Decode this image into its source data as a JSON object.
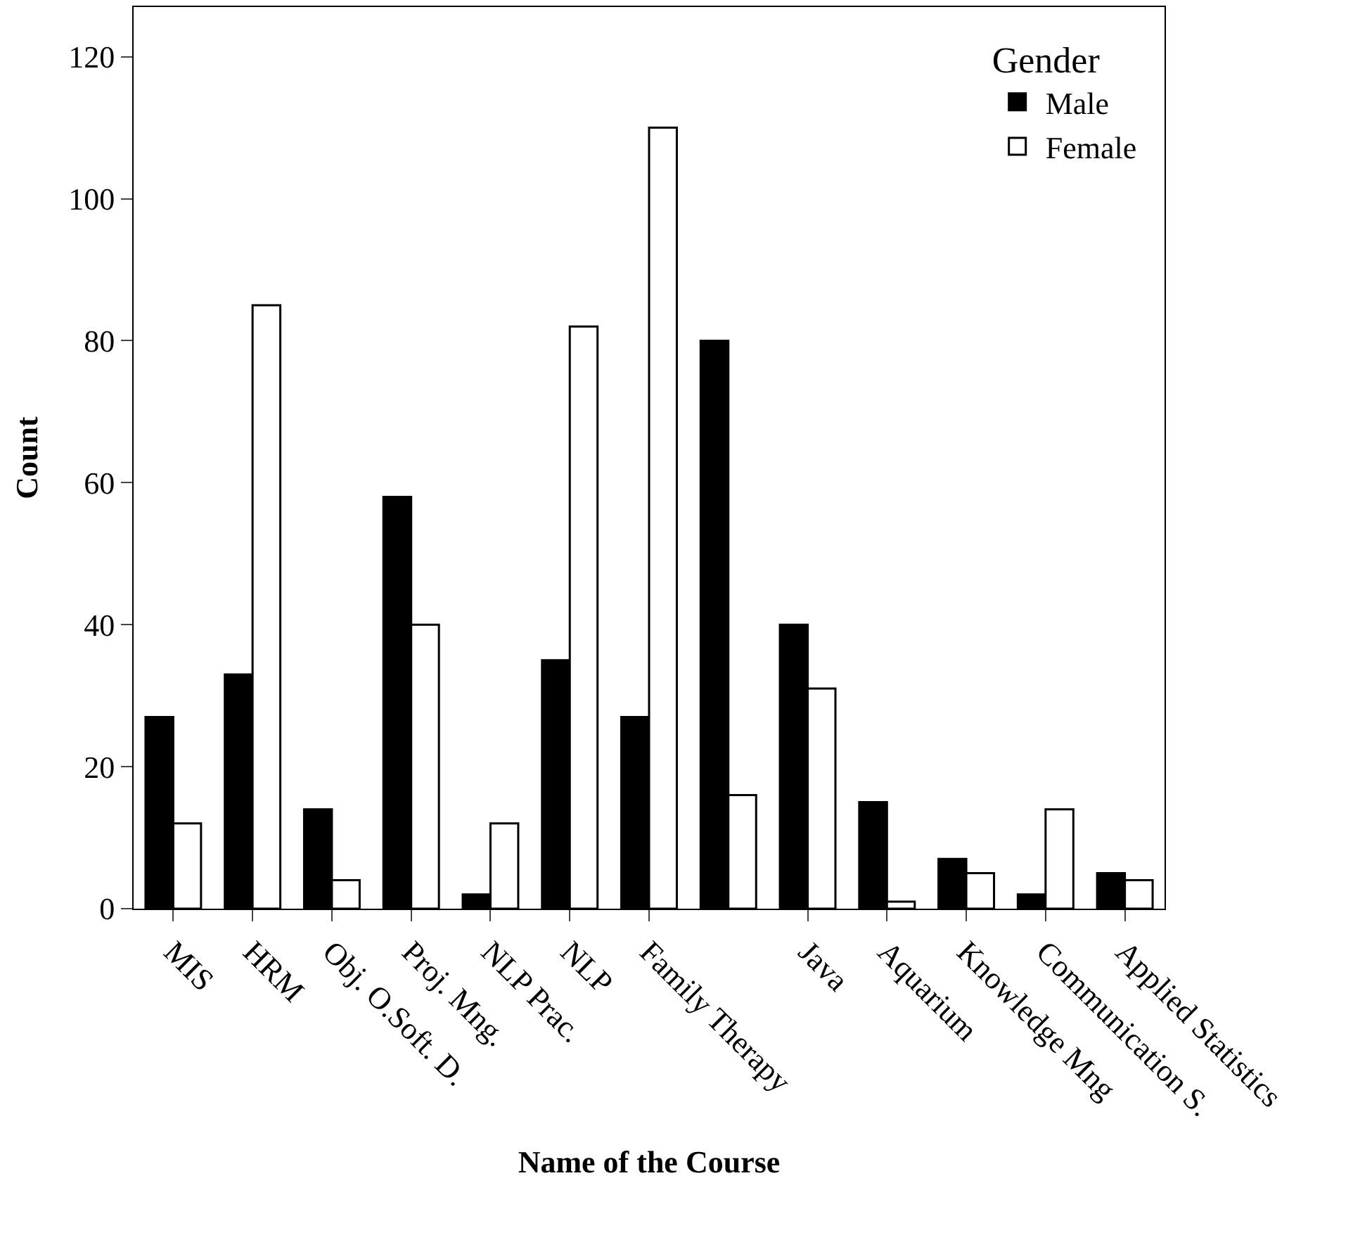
{
  "chart_data": {
    "type": "bar",
    "xlabel": "Name of the Course",
    "ylabel": "Count",
    "legend_title": "Gender",
    "categories": [
      "MIS",
      "HRM",
      "Obj. O.Soft. D.",
      "Proj. Mng.",
      "NLP Prac.",
      "NLP",
      "Family Therapy",
      null,
      "Java",
      "Aquarium",
      "Knowledge Mng",
      "Communication S.",
      "Applied Statistics"
    ],
    "series": [
      {
        "name": "Male",
        "color": "#000000",
        "values": [
          27,
          33,
          14,
          58,
          2,
          35,
          27,
          80,
          40,
          15,
          7,
          2,
          5
        ]
      },
      {
        "name": "Female",
        "color": "#ffffff",
        "values": [
          12,
          85,
          4,
          40,
          12,
          82,
          110,
          16,
          31,
          1,
          5,
          14,
          4
        ]
      }
    ],
    "ylim": [
      0,
      127
    ],
    "yticks": [
      0,
      20,
      40,
      60,
      80,
      100,
      120
    ],
    "legend": "top right"
  }
}
